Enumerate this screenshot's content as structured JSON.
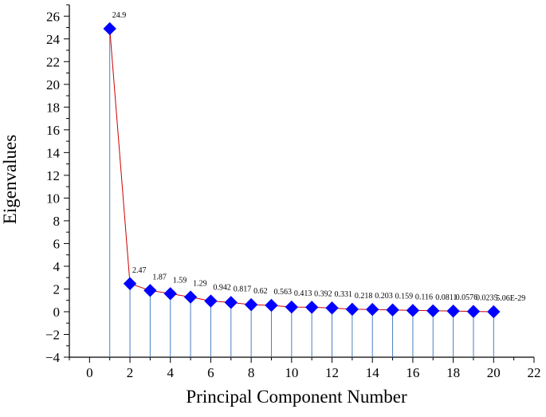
{
  "chart_data": {
    "type": "scatter",
    "title": "",
    "xlabel": "Principal Component Number",
    "ylabel": "Eigenvalues",
    "xlim": [
      -1,
      22
    ],
    "ylim": [
      -4,
      27
    ],
    "x_ticks": [
      0,
      2,
      4,
      6,
      8,
      10,
      12,
      14,
      16,
      18,
      20,
      22
    ],
    "y_ticks": [
      -4,
      -2,
      0,
      2,
      4,
      6,
      8,
      10,
      12,
      14,
      16,
      18,
      20,
      22,
      24,
      26
    ],
    "x_tick_labels": [
      "0",
      "2",
      "4",
      "6",
      "8",
      "10",
      "12",
      "14",
      "16",
      "18",
      "20",
      "22"
    ],
    "y_tick_labels": [
      "−4",
      "−2",
      "0",
      "2",
      "4",
      "6",
      "8",
      "10",
      "12",
      "14",
      "16",
      "18",
      "20",
      "22",
      "24",
      "26"
    ],
    "grid": false,
    "legend": "none",
    "drop_lines": true,
    "connecting_line": true,
    "series": [
      {
        "x": [
          1,
          2,
          3,
          4,
          5,
          6,
          7,
          8,
          9,
          10,
          11,
          12,
          13,
          14,
          15,
          16,
          17,
          18,
          19,
          20
        ],
        "values": [
          24.9,
          2.47,
          1.87,
          1.59,
          1.29,
          0.942,
          0.817,
          0.62,
          0.563,
          0.413,
          0.392,
          0.331,
          0.218,
          0.203,
          0.159,
          0.116,
          0.0811,
          0.0576,
          0.0235,
          5.06e-29
        ],
        "data_labels": [
          "24.9",
          "2.47",
          "1.87",
          "1.59",
          "1.29",
          "0.942",
          "0.817",
          "0.62",
          "0.563",
          "0.413",
          "0.392",
          "0.331",
          "0.218",
          "0.203",
          "0.159",
          "0.116",
          "0.0811",
          "0.0576",
          "0.0235",
          "5.06E-29"
        ],
        "marker": "diamond",
        "marker_color": "#0000ff",
        "line_color": "#cc0000",
        "drop_line_color": "#4a7fc1"
      }
    ]
  }
}
